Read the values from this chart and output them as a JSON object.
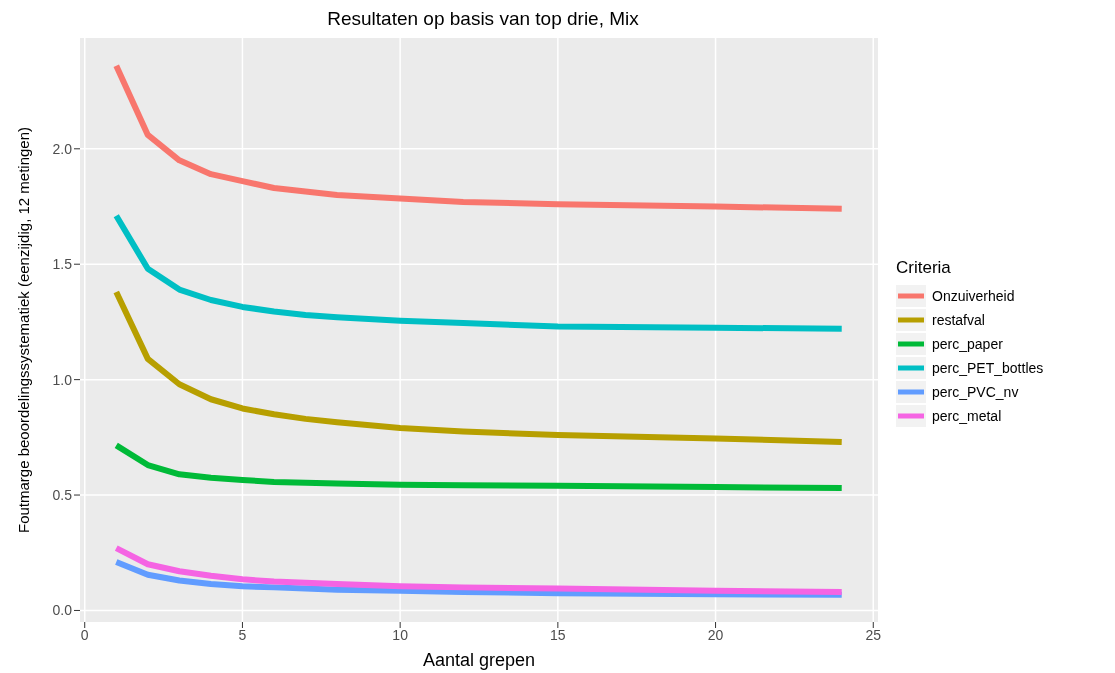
{
  "chart_data": {
    "type": "line",
    "title": "Resultaten op basis van top drie,  Mix",
    "xlabel": "Aantal grepen",
    "ylabel": "Foutmarge beoordelingssystematiek (eenzijdig, 12 metingen)",
    "legend_title": "Criteria",
    "legend": "right",
    "grid": true,
    "line_style": "solid",
    "xlim": [
      -0.15,
      25.15
    ],
    "xticks": [
      0,
      5,
      10,
      15,
      20,
      25
    ],
    "ylim": [
      -0.05,
      2.48
    ],
    "yticks": [
      {
        "value": 0,
        "label": "0.0"
      },
      0.5,
      {
        "value": 1,
        "label": "1.0"
      },
      1.5,
      {
        "value": 2,
        "label": "2.0"
      }
    ],
    "series": [
      {
        "name": "Onzuiverheid",
        "color": "#f8766d",
        "x": [
          1,
          2,
          3,
          4,
          5,
          6,
          7,
          8,
          10,
          12,
          15,
          20,
          24
        ],
        "values": [
          2.36,
          2.06,
          1.95,
          1.89,
          1.86,
          1.83,
          1.815,
          1.8,
          1.785,
          1.77,
          1.76,
          1.75,
          1.74
        ]
      },
      {
        "name": "restafval",
        "color": "#b79f00",
        "x": [
          1,
          2,
          3,
          4,
          5,
          6,
          7,
          8,
          10,
          12,
          15,
          20,
          24
        ],
        "values": [
          1.38,
          1.09,
          0.98,
          0.915,
          0.875,
          0.85,
          0.83,
          0.815,
          0.79,
          0.775,
          0.76,
          0.745,
          0.73
        ]
      },
      {
        "name": "perc_paper",
        "color": "#00ba38",
        "x": [
          1,
          2,
          3,
          4,
          5,
          6,
          7,
          8,
          10,
          12,
          15,
          20,
          24
        ],
        "values": [
          0.715,
          0.63,
          0.59,
          0.575,
          0.565,
          0.557,
          0.553,
          0.55,
          0.545,
          0.542,
          0.54,
          0.535,
          0.53
        ]
      },
      {
        "name": "perc_PET_bottles",
        "color": "#00bfc4",
        "x": [
          1,
          2,
          3,
          4,
          5,
          6,
          7,
          8,
          10,
          12,
          15,
          20,
          24
        ],
        "values": [
          1.71,
          1.48,
          1.39,
          1.345,
          1.315,
          1.295,
          1.28,
          1.27,
          1.255,
          1.245,
          1.23,
          1.225,
          1.22
        ]
      },
      {
        "name": "perc_PVC_nv",
        "color": "#619cff",
        "x": [
          1,
          2,
          3,
          4,
          5,
          6,
          7,
          8,
          10,
          12,
          15,
          20,
          24
        ],
        "values": [
          0.21,
          0.155,
          0.13,
          0.115,
          0.105,
          0.1,
          0.095,
          0.09,
          0.085,
          0.08,
          0.075,
          0.07,
          0.068
        ]
      },
      {
        "name": "perc_metal",
        "color": "#f564e3",
        "x": [
          1,
          2,
          3,
          4,
          5,
          6,
          7,
          8,
          10,
          12,
          15,
          20,
          24
        ],
        "values": [
          0.27,
          0.2,
          0.17,
          0.15,
          0.135,
          0.125,
          0.12,
          0.115,
          0.105,
          0.1,
          0.095,
          0.085,
          0.08
        ]
      }
    ]
  }
}
